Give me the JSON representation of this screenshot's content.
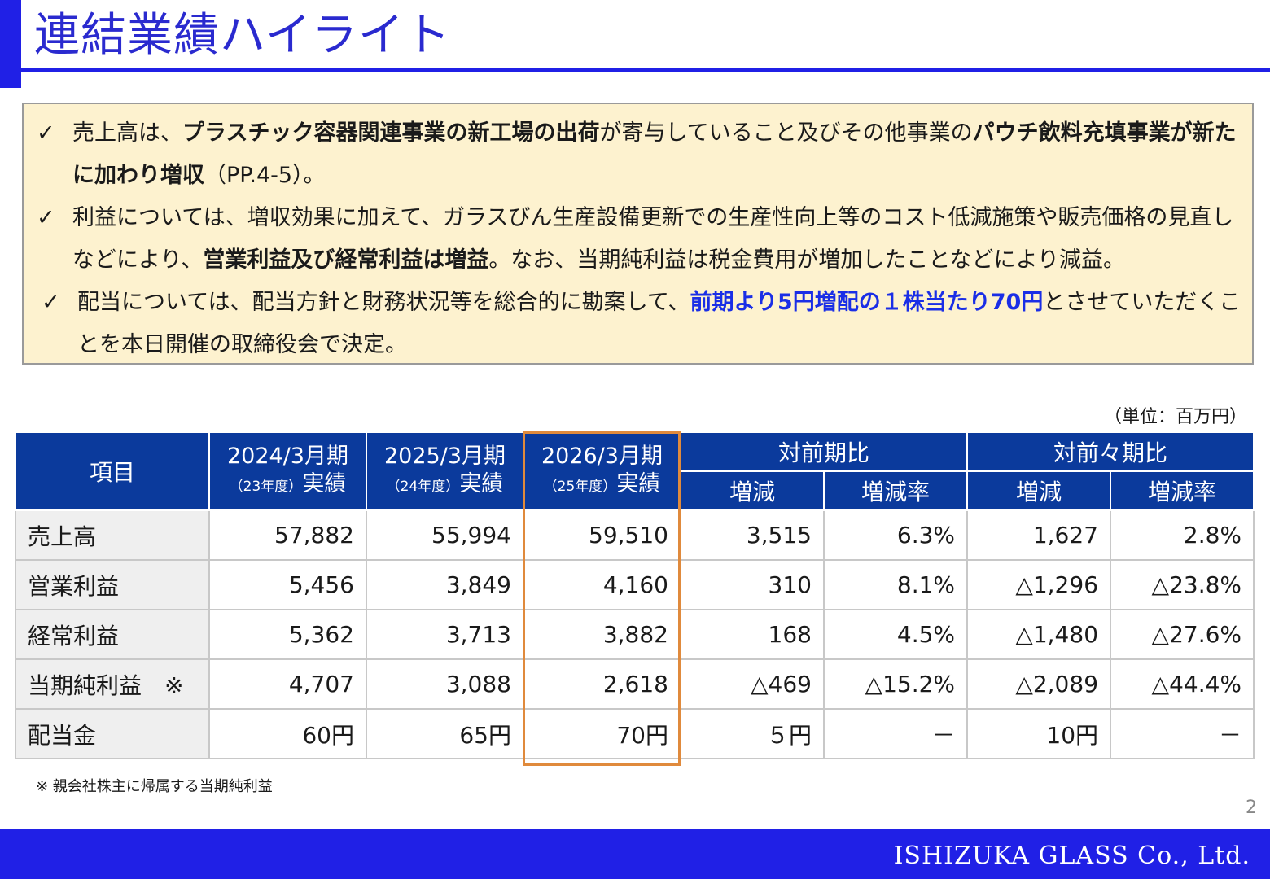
{
  "title": "連結業績ハイライト",
  "summary": {
    "check_mark": "✓",
    "b1": {
      "t1": "売上高は、",
      "b1": "プラスチック容器関連事業の新工場の出荷",
      "t2": "が寄与していること及びその他事業の",
      "b2": "パウチ飲料充填事業が新たに加わり増収",
      "t3": "（PP.4-5）。"
    },
    "b2": {
      "t1": "利益については、増収効果に加えて、ガラスびん生産設備更新での生産性向上等のコスト低減施策や販売価格の見直しなどにより、",
      "b1": "営業利益及び経常利益は増益",
      "t2": "。なお、当期純利益は税金費用が増加したことなどにより減益。"
    },
    "b3": {
      "t1": "配当については、配当方針と財務状況等を総合的に勘案して、",
      "blue": "前期より5円増配の１株当たり70円",
      "t2": "とさせていただくことを本日開催の取締役会で決定。"
    }
  },
  "unit_label": "（単位：百万円）",
  "table": {
    "header": {
      "item": "項目",
      "fy2024_year": "2024/3月期",
      "fy2024_sub_small": "（23年度）",
      "fy2024_sub": "実績",
      "fy2025_year": "2025/3月期",
      "fy2025_sub_small": "（24年度）",
      "fy2025_sub": "実績",
      "fy2026_year": "2026/3月期",
      "fy2026_sub_small": "（25年度）",
      "fy2026_sub": "実績",
      "vs_prev": "対前期比",
      "vs_prev2": "対前々期比",
      "change": "増減",
      "change_rate": "増減率"
    },
    "rows": [
      {
        "label": "売上高",
        "v2024": "57,882",
        "v2025": "55,994",
        "v2026": "59,510",
        "chg": "3,515",
        "rate": "6.3%",
        "chg2": "1,627",
        "rate2": "2.8%"
      },
      {
        "label": "営業利益",
        "v2024": "5,456",
        "v2025": "3,849",
        "v2026": "4,160",
        "chg": "310",
        "rate": "8.1%",
        "chg2": "△1,296",
        "rate2": "△23.8%"
      },
      {
        "label": "経常利益",
        "v2024": "5,362",
        "v2025": "3,713",
        "v2026": "3,882",
        "chg": "168",
        "rate": "4.5%",
        "chg2": "△1,480",
        "rate2": "△27.6%"
      },
      {
        "label": "当期純利益　※",
        "v2024": "4,707",
        "v2025": "3,088",
        "v2026": "2,618",
        "chg": "△469",
        "rate": "△15.2%",
        "chg2": "△2,089",
        "rate2": "△44.4%"
      },
      {
        "label": "配当金",
        "v2024": "60円",
        "v2025": "65円",
        "v2026": "70円",
        "chg": "５円",
        "rate": "－",
        "chg2": "10円",
        "rate2": "－"
      }
    ]
  },
  "footnote": "※ 親会社株主に帰属する当期純利益",
  "page_number": "2",
  "company": "ISHIZUKA GLASS Co., Ltd.",
  "colors": {
    "brand_blue": "#2020e6",
    "header_blue": "#0b3a9c",
    "highlight_orange": "#e08a3c",
    "summary_bg": "#fdf2cf"
  }
}
